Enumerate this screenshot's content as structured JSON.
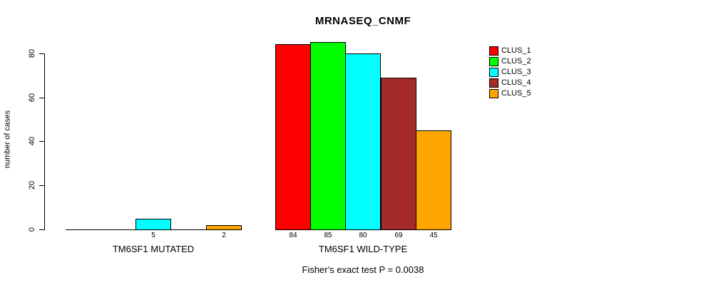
{
  "chart_data": {
    "type": "bar",
    "title": "MRNASEQ_CNMF",
    "ylabel": "number of cases",
    "ylim": [
      0,
      85
    ],
    "yticks": [
      0,
      20,
      40,
      60,
      80
    ],
    "grid": false,
    "legend_position": "right",
    "groups": [
      "TM6SF1 MUTATED",
      "TM6SF1 WILD-TYPE"
    ],
    "series": [
      {
        "name": "CLUS_1",
        "color": "#ff0000",
        "values": [
          0,
          84
        ]
      },
      {
        "name": "CLUS_2",
        "color": "#00ff00",
        "values": [
          0,
          85
        ]
      },
      {
        "name": "CLUS_3",
        "color": "#00ffff",
        "values": [
          5,
          80
        ]
      },
      {
        "name": "CLUS_4",
        "color": "#a52a2a",
        "values": [
          0,
          69
        ]
      },
      {
        "name": "CLUS_5",
        "color": "#ffa500",
        "values": [
          2,
          45
        ]
      }
    ],
    "bar_value_labels_shown_for_nonzero_only": true,
    "annotation": "Fisher's exact test P = 0.0038",
    "axis_color": "#000000",
    "background_color": "#ffffff"
  }
}
